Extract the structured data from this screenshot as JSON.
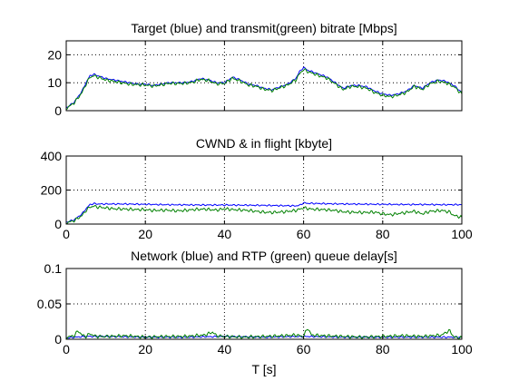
{
  "figure": {
    "xlabel": "T [s]"
  },
  "colors": {
    "blue": "#0000ff",
    "green": "#008000",
    "axis": "#000000",
    "grid": "#000000"
  },
  "chart_data": [
    {
      "type": "line",
      "title": "Target (blue) and transmit(green) bitrate [Mbps]",
      "xlabel": "",
      "ylabel": "",
      "xlim": [
        0,
        100
      ],
      "ylim": [
        0,
        25
      ],
      "xticks": [
        0,
        20,
        40,
        60,
        80,
        100
      ],
      "yticks": [
        0,
        10,
        20
      ],
      "xticklabels": [],
      "yticklabels": [
        "0",
        "10",
        "20"
      ],
      "grid": true,
      "series": [
        {
          "color": "blue",
          "x": [
            0,
            2,
            4,
            5,
            6,
            7,
            8,
            10,
            12,
            14,
            16,
            18,
            20,
            22,
            24,
            26,
            28,
            30,
            32,
            34,
            36,
            38,
            40,
            42,
            44,
            46,
            48,
            50,
            52,
            54,
            56,
            58,
            59,
            60,
            61,
            62,
            64,
            66,
            68,
            70,
            72,
            74,
            76,
            78,
            80,
            82,
            84,
            86,
            88,
            90,
            92,
            94,
            96,
            98,
            100
          ],
          "y": [
            1,
            3,
            7,
            10,
            12.5,
            13,
            12.5,
            11.5,
            11,
            10.5,
            10,
            9.5,
            9.5,
            9,
            9.5,
            10,
            10,
            10,
            10.5,
            11.5,
            11,
            10,
            10,
            12,
            11,
            9.5,
            9,
            8,
            7.5,
            8.5,
            9.5,
            11.5,
            14,
            15.5,
            14.5,
            14,
            13,
            12,
            10,
            8,
            9,
            9,
            8.5,
            7,
            6,
            5.5,
            6,
            7,
            9,
            8,
            10,
            11,
            10.5,
            9,
            6.5
          ]
        },
        {
          "color": "green",
          "x": [
            0,
            2,
            4,
            5,
            6,
            7,
            8,
            10,
            12,
            14,
            16,
            18,
            20,
            22,
            24,
            26,
            28,
            30,
            32,
            34,
            36,
            38,
            40,
            42,
            44,
            46,
            48,
            50,
            52,
            54,
            56,
            58,
            59,
            60,
            61,
            62,
            64,
            66,
            68,
            70,
            72,
            74,
            76,
            78,
            80,
            82,
            84,
            86,
            88,
            90,
            92,
            94,
            96,
            98,
            100
          ],
          "y": [
            0.8,
            2.8,
            6.5,
            9.5,
            12,
            12.5,
            12,
            11,
            10.5,
            10,
            9.5,
            9.3,
            9.2,
            8.8,
            9.2,
            9.8,
            9.7,
            9.8,
            10.2,
            11.2,
            10.8,
            9.6,
            9.8,
            11.6,
            10.6,
            9.2,
            8.7,
            7.7,
            7.2,
            8.2,
            9.2,
            11,
            13.2,
            14.8,
            14,
            13.5,
            12.5,
            11.6,
            9.6,
            7.6,
            8.7,
            8.6,
            8,
            6.5,
            5.5,
            5,
            5.6,
            6.6,
            8.7,
            7.6,
            9.6,
            10.6,
            10,
            8.6,
            6
          ]
        }
      ]
    },
    {
      "type": "line",
      "title": "CWND & in flight [kbyte]",
      "xlabel": "",
      "ylabel": "",
      "xlim": [
        0,
        100
      ],
      "ylim": [
        0,
        400
      ],
      "xticks": [
        0,
        20,
        40,
        60,
        80,
        100
      ],
      "yticks": [
        0,
        200,
        400
      ],
      "xticklabels": [
        "0",
        "20",
        "40",
        "60",
        "80",
        "100"
      ],
      "yticklabels": [
        "0",
        "200",
        "400"
      ],
      "grid": true,
      "series": [
        {
          "color": "blue",
          "x": [
            0,
            2,
            4,
            5,
            6,
            7,
            8,
            10,
            15,
            20,
            25,
            30,
            35,
            40,
            45,
            50,
            55,
            58,
            59,
            60,
            61,
            65,
            70,
            75,
            80,
            85,
            90,
            95,
            100
          ],
          "y": [
            10,
            25,
            60,
            90,
            115,
            120,
            118,
            118,
            118,
            116,
            114,
            113,
            112,
            112,
            111,
            110,
            108,
            107,
            110,
            125,
            122,
            120,
            118,
            117,
            116,
            115,
            115,
            114,
            114
          ]
        },
        {
          "color": "green",
          "x": [
            0,
            2,
            4,
            5,
            6,
            7,
            8,
            10,
            12,
            15,
            18,
            20,
            22,
            25,
            28,
            30,
            32,
            35,
            38,
            40,
            42,
            45,
            48,
            50,
            52,
            55,
            58,
            60,
            62,
            65,
            68,
            70,
            72,
            75,
            78,
            80,
            82,
            85,
            88,
            90,
            92,
            95,
            97,
            98,
            100
          ],
          "y": [
            8,
            20,
            50,
            80,
            100,
            105,
            100,
            95,
            90,
            88,
            85,
            85,
            80,
            82,
            78,
            80,
            85,
            88,
            82,
            90,
            85,
            82,
            75,
            70,
            68,
            72,
            80,
            95,
            88,
            85,
            80,
            72,
            70,
            68,
            70,
            60,
            55,
            65,
            75,
            60,
            75,
            80,
            70,
            50,
            40
          ]
        }
      ]
    },
    {
      "type": "line",
      "title": "Network (blue) and RTP (green) queue delay[s]",
      "xlabel": "T [s]",
      "ylabel": "",
      "xlim": [
        0,
        100
      ],
      "ylim": [
        0,
        0.1
      ],
      "xticks": [
        0,
        20,
        40,
        60,
        80,
        100
      ],
      "yticks": [
        0,
        0.05,
        0.1
      ],
      "xticklabels": [
        "0",
        "20",
        "40",
        "60",
        "80",
        "100"
      ],
      "yticklabels": [
        "0",
        "0.05",
        "0.1"
      ],
      "grid": true,
      "series": [
        {
          "color": "blue",
          "x": [
            0,
            5,
            10,
            20,
            30,
            40,
            50,
            60,
            70,
            80,
            90,
            100
          ],
          "y": [
            0.002,
            0.004,
            0.004,
            0.003,
            0.003,
            0.004,
            0.003,
            0.004,
            0.003,
            0.003,
            0.003,
            0.003
          ]
        },
        {
          "color": "green",
          "x": [
            0,
            2,
            3,
            4,
            5,
            6,
            7,
            8,
            10,
            15,
            20,
            25,
            30,
            35,
            37,
            38,
            40,
            45,
            50,
            55,
            58,
            60,
            61,
            62,
            65,
            70,
            75,
            80,
            85,
            90,
            95,
            96,
            97,
            98,
            100
          ],
          "y": [
            0.003,
            0.005,
            0.012,
            0.006,
            0.004,
            0.008,
            0.005,
            0.004,
            0.004,
            0.005,
            0.003,
            0.004,
            0.004,
            0.006,
            0.01,
            0.005,
            0.004,
            0.003,
            0.004,
            0.005,
            0.006,
            0.004,
            0.016,
            0.006,
            0.005,
            0.004,
            0.003,
            0.004,
            0.005,
            0.004,
            0.006,
            0.01,
            0.012,
            0.003,
            0.002
          ]
        }
      ]
    }
  ]
}
